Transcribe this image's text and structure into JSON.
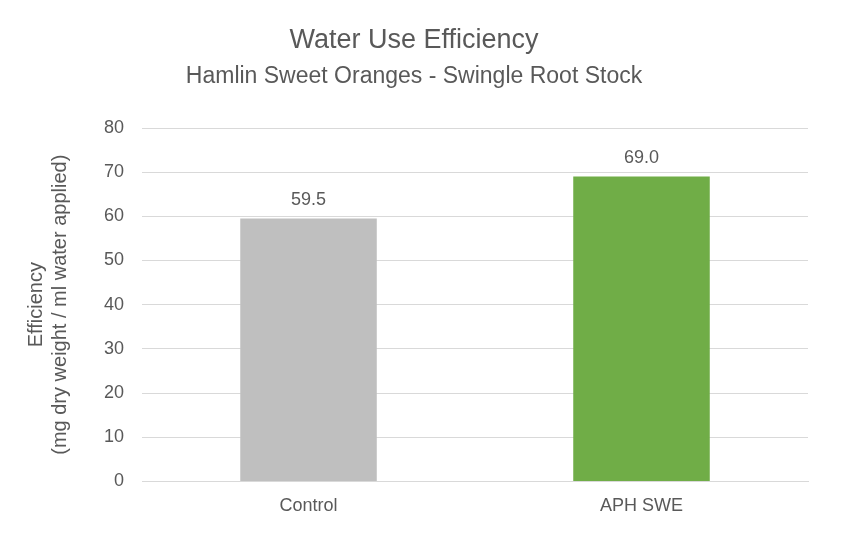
{
  "chart_data": {
    "type": "bar",
    "title": "Water Use Efficiency",
    "subtitle": "Hamlin Sweet Oranges - Swingle Root Stock",
    "y_label": [
      "Efficiency",
      "(mg dry weight / ml water applied)"
    ],
    "categories": [
      "Control",
      "APH SWE"
    ],
    "values": [
      59.5,
      69.0
    ],
    "value_labels": [
      "59.5",
      "69.0"
    ],
    "colors": [
      "#bfbfbf",
      "#70ad47"
    ],
    "ylim": [
      0,
      80
    ],
    "yticks": [
      0,
      10,
      20,
      30,
      40,
      50,
      60,
      70,
      80
    ],
    "grid": true,
    "data_labels": true
  }
}
